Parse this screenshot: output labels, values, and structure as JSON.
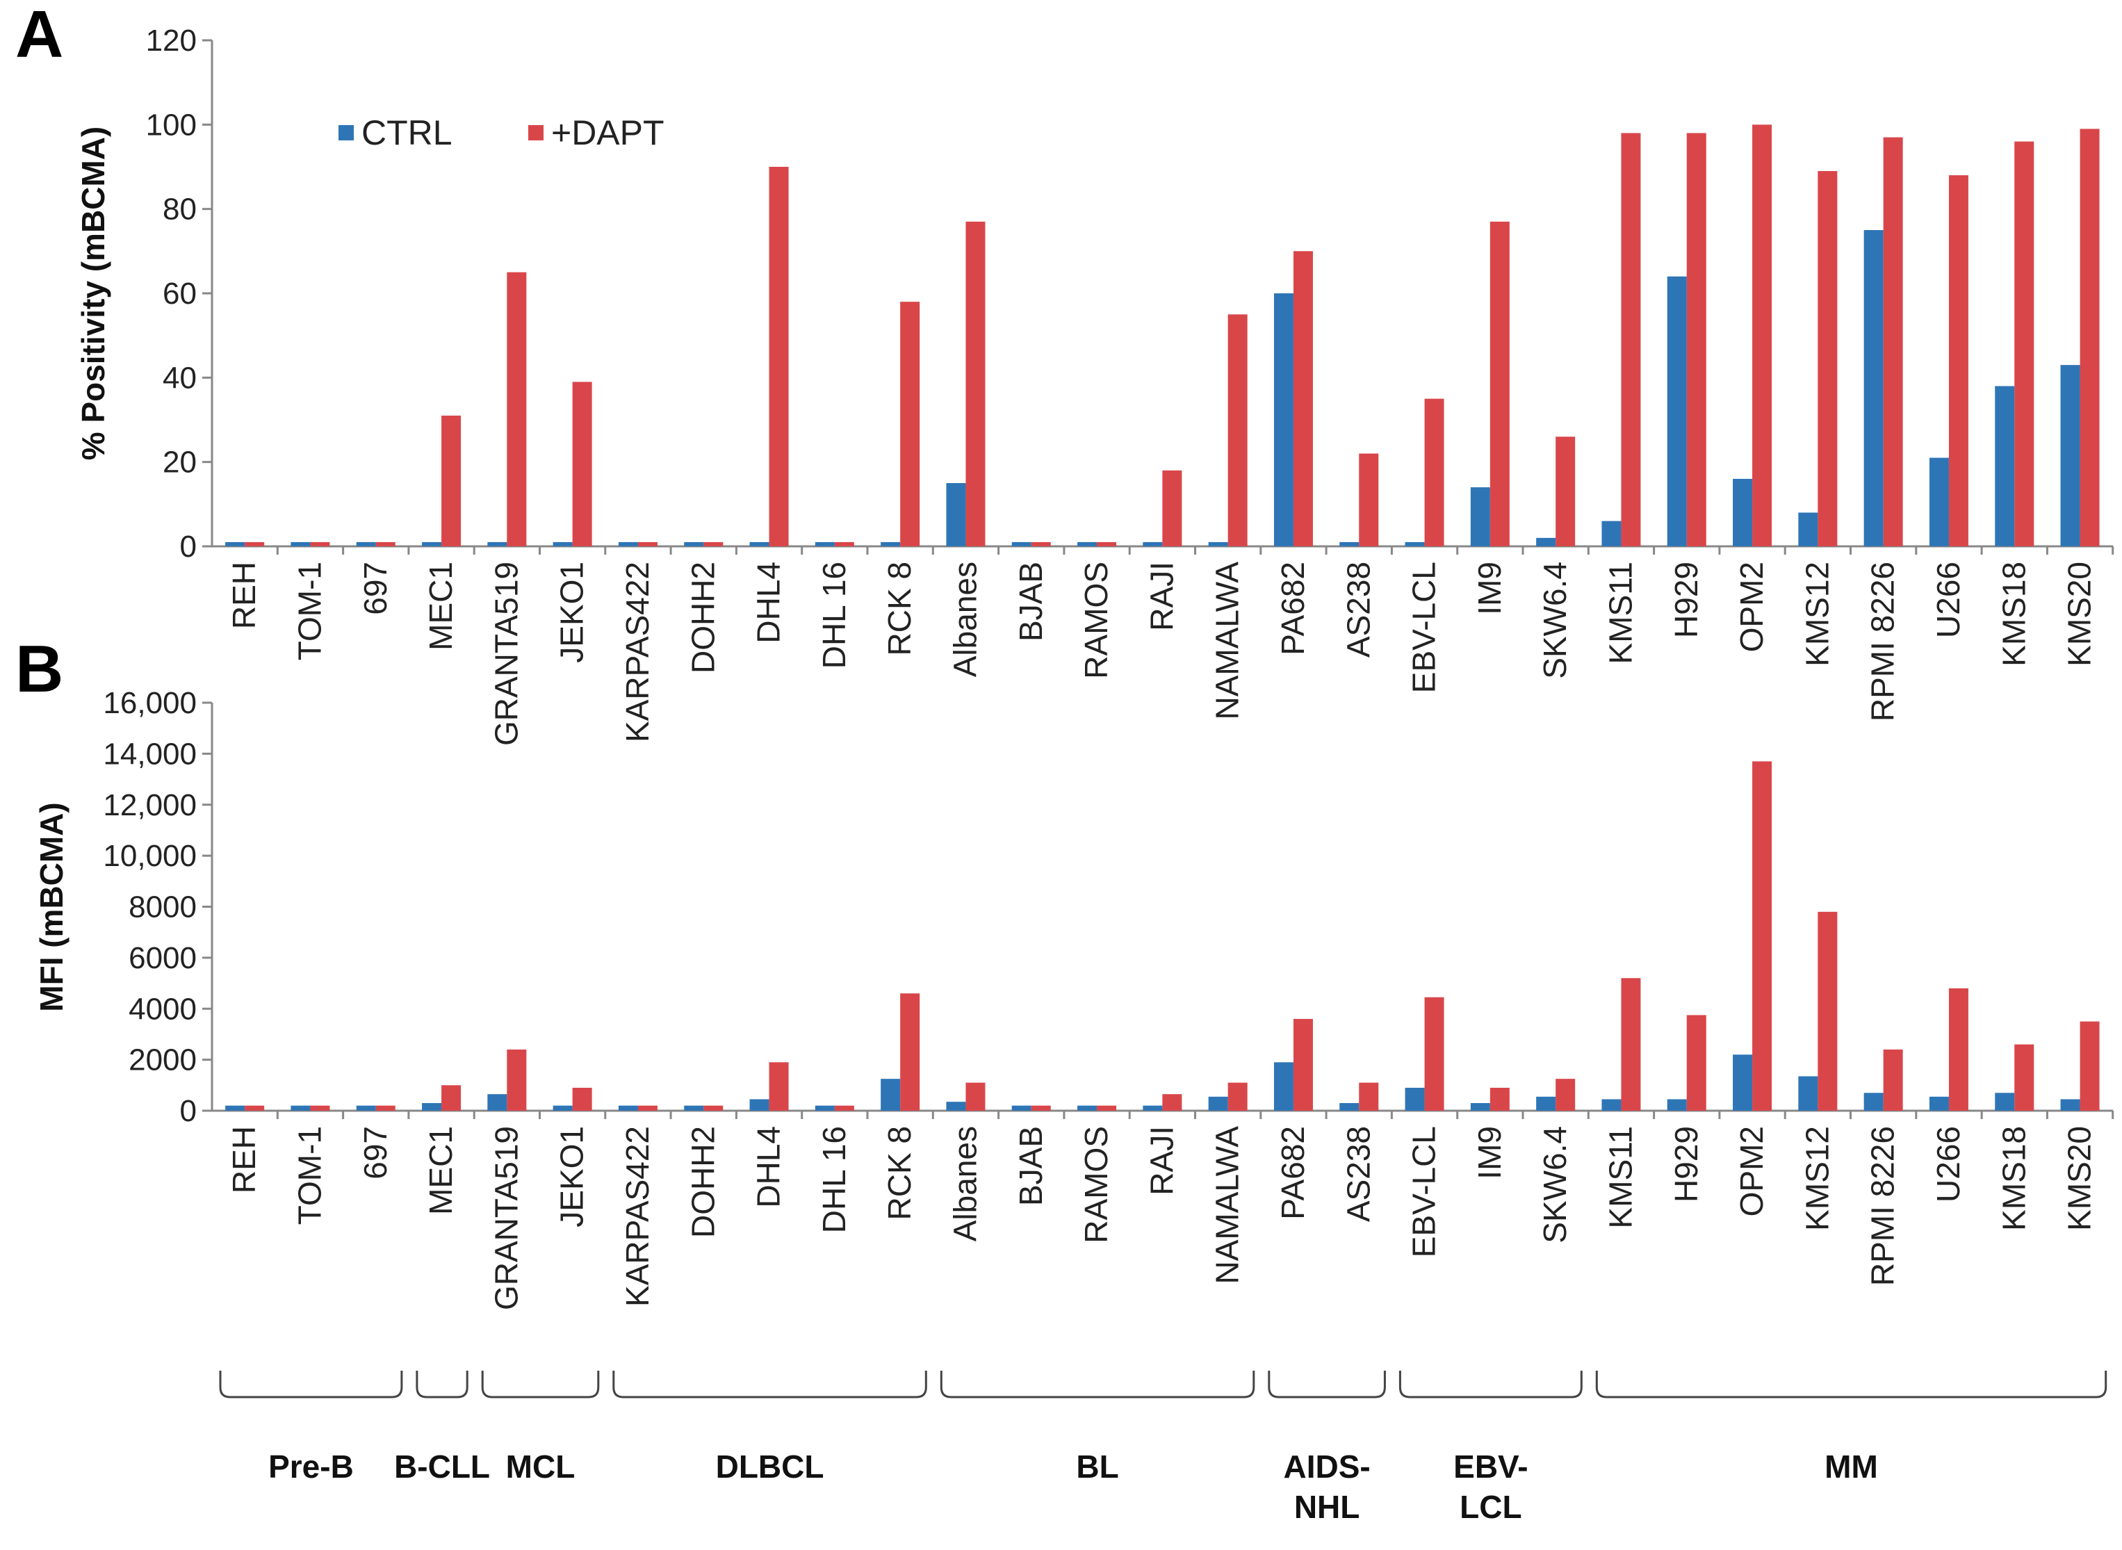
{
  "colors": {
    "ctrl": "#2E75B6",
    "dapt": "#D9464A"
  },
  "legend": {
    "ctrl": "CTRL",
    "dapt": "+DAPT"
  },
  "chart_data": [
    {
      "panel": "A",
      "type": "bar",
      "ylabel": "% Positivity (mBCMA)",
      "ylim": [
        0,
        120
      ],
      "yticks": [
        "0",
        "20",
        "40",
        "60",
        "80",
        "100",
        "120"
      ],
      "categories": [
        "REH",
        "TOM-1",
        "697",
        "MEC1",
        "GRANTA519",
        "JEKO1",
        "KARPAS422",
        "DOHH2",
        "DHL4",
        "DHL 16",
        "RCK 8",
        "Albanes",
        "BJAB",
        "RAMOS",
        "RAJI",
        "NAMALWA",
        "PA682",
        "AS238",
        "EBV-LCL",
        "IM9",
        "SKW6.4",
        "KMS11",
        "H929",
        "OPM2",
        "KMS12",
        "RPMI 8226",
        "U266",
        "KMS18",
        "KMS20"
      ],
      "series": [
        {
          "name": "CTRL",
          "values": [
            1,
            1,
            1,
            1,
            1,
            1,
            1,
            1,
            1,
            1,
            1,
            15,
            1,
            1,
            1,
            1,
            60,
            1,
            1,
            14,
            2,
            6,
            64,
            16,
            8,
            75,
            21,
            38,
            43
          ]
        },
        {
          "name": "+DAPT",
          "values": [
            1,
            1,
            1,
            31,
            65,
            39,
            1,
            1,
            90,
            1,
            58,
            77,
            1,
            1,
            18,
            55,
            70,
            22,
            35,
            77,
            26,
            98,
            98,
            100,
            89,
            97,
            88,
            96,
            99
          ]
        }
      ]
    },
    {
      "panel": "B",
      "type": "bar",
      "ylabel": "MFI (mBCMA)",
      "ylim": [
        0,
        16000
      ],
      "yticks": [
        "0",
        "2000",
        "4000",
        "6000",
        "8000",
        "10,000",
        "12,000",
        "14,000",
        "16,000"
      ],
      "categories": [
        "REH",
        "TOM-1",
        "697",
        "MEC1",
        "GRANTA519",
        "JEKO1",
        "KARPAS422",
        "DOHH2",
        "DHL4",
        "DHL 16",
        "RCK 8",
        "Albanes",
        "BJAB",
        "RAMOS",
        "RAJI",
        "NAMALWA",
        "PA682",
        "AS238",
        "EBV-LCL",
        "IM9",
        "SKW6.4",
        "KMS11",
        "H929",
        "OPM2",
        "KMS12",
        "RPMI 8226",
        "U266",
        "KMS18",
        "KMS20"
      ],
      "series": [
        {
          "name": "CTRL",
          "values": [
            200,
            200,
            200,
            300,
            650,
            200,
            200,
            200,
            450,
            200,
            1250,
            350,
            200,
            200,
            200,
            550,
            1900,
            300,
            900,
            300,
            550,
            450,
            450,
            2200,
            1350,
            700,
            550,
            700,
            450
          ]
        },
        {
          "name": "+DAPT",
          "values": [
            200,
            200,
            200,
            1000,
            2400,
            900,
            200,
            200,
            1900,
            200,
            4600,
            1100,
            200,
            200,
            650,
            1100,
            3600,
            1100,
            4450,
            900,
            1250,
            5200,
            3750,
            13700,
            7800,
            2400,
            4800,
            2600,
            3500
          ]
        }
      ]
    }
  ],
  "groups": [
    {
      "label": "Pre-B",
      "start": 0,
      "end": 2
    },
    {
      "label": "B-CLL",
      "start": 3,
      "end": 3
    },
    {
      "label": "MCL",
      "start": 4,
      "end": 5
    },
    {
      "label": "DLBCL",
      "start": 6,
      "end": 10
    },
    {
      "label": "BL",
      "start": 11,
      "end": 15
    },
    {
      "label": "AIDS-\nNHL",
      "start": 16,
      "end": 17
    },
    {
      "label": "EBV-\nLCL",
      "start": 18,
      "end": 20
    },
    {
      "label": "MM",
      "start": 21,
      "end": 28
    }
  ]
}
